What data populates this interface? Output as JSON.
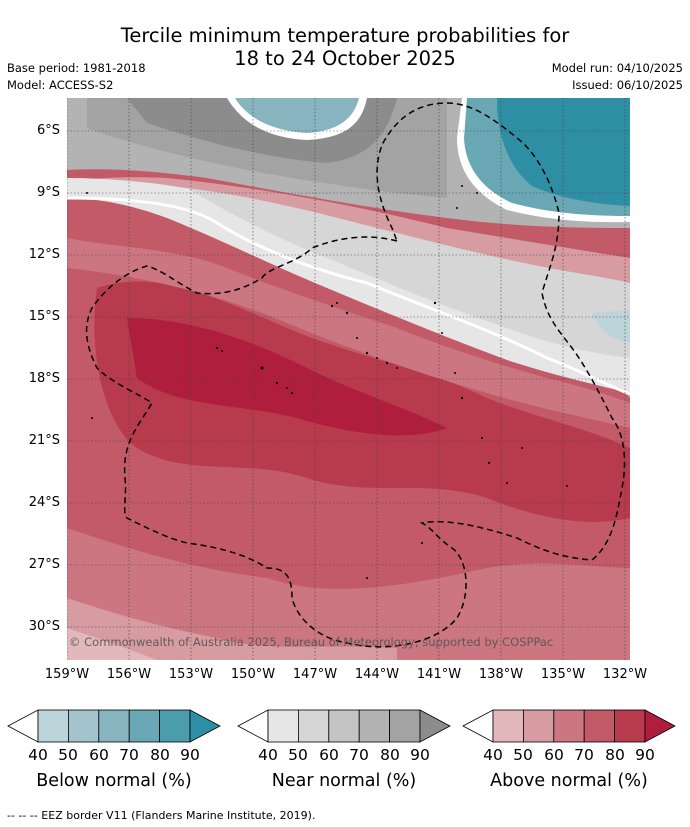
{
  "header": {
    "title_line1": "Tercile minimum temperature probabilities for",
    "title_line2": "18 to 24 October 2025",
    "base_period": "Base period: 1981-2018",
    "model": "Model: ACCESS-S2",
    "model_run": "Model run: 04/10/2025",
    "issued": "Issued: 06/10/2025"
  },
  "map": {
    "lat_labels": [
      "6°S",
      "9°S",
      "12°S",
      "15°S",
      "18°S",
      "21°S",
      "24°S",
      "27°S",
      "30°S"
    ],
    "lon_labels": [
      "159°W",
      "156°W",
      "153°W",
      "150°W",
      "147°W",
      "144°W",
      "141°W",
      "138°W",
      "135°W",
      "132°W"
    ],
    "copyright": "© Commonwealth of Australia 2025, Bureau of Meteorology, supported by COSPPac"
  },
  "legend": {
    "ticks": [
      "40",
      "50",
      "60",
      "70",
      "80",
      "90"
    ],
    "below_title": "Below normal (%)",
    "near_title": "Near normal (%)",
    "above_title": "Above normal (%)",
    "below_colors": [
      "#bdd4da",
      "#a3c4cc",
      "#88b4bf",
      "#6aa7b5",
      "#4b9cad",
      "#2e8ea3"
    ],
    "near_colors": [
      "#e6e6e6",
      "#d6d6d6",
      "#c4c4c4",
      "#b3b3b3",
      "#a3a3a3",
      "#8c8c8c"
    ],
    "above_colors": [
      "#e3b8bd",
      "#d79ba2",
      "#cb7681",
      "#c25a68",
      "#b83a4d",
      "#af1e3c"
    ]
  },
  "footer": {
    "eez_note": "-- -- -- EEZ border V11 (Flanders Marine Institute, 2019)."
  }
}
